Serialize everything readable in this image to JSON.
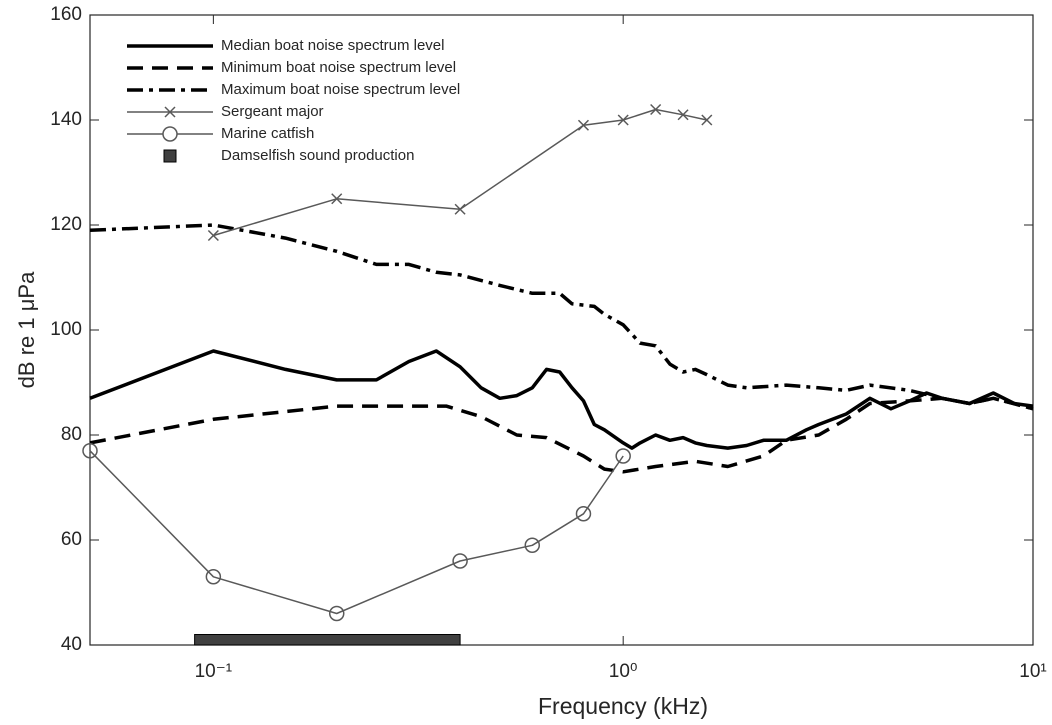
{
  "chart_data": {
    "type": "line",
    "xlabel": "Frequency (kHz)",
    "ylabel": "dB re 1 μPa",
    "xscale": "log",
    "xlim": [
      0.05,
      10
    ],
    "ylim": [
      40,
      160
    ],
    "xticks": [
      {
        "value": 0.1,
        "label": "10⁻¹"
      },
      {
        "value": 1,
        "label": "10⁰"
      },
      {
        "value": 10,
        "label": "10¹"
      }
    ],
    "yticks": [
      40,
      60,
      80,
      100,
      120,
      140,
      160
    ],
    "legend": "upper-left",
    "series": [
      {
        "name": "Median boat noise spectrum level",
        "color": "#000000",
        "style": "solid",
        "width": 3.5,
        "x": [
          0.05,
          0.1,
          0.15,
          0.2,
          0.25,
          0.3,
          0.35,
          0.4,
          0.45,
          0.5,
          0.55,
          0.6,
          0.65,
          0.7,
          0.75,
          0.8,
          0.85,
          0.9,
          1,
          1.05,
          1.1,
          1.2,
          1.3,
          1.4,
          1.5,
          1.6,
          1.8,
          2,
          2.2,
          2.5,
          2.8,
          3,
          3.5,
          4,
          4.5,
          5,
          5.5,
          6,
          7,
          8,
          9,
          10
        ],
        "values": [
          87,
          96,
          92.5,
          90.5,
          90.5,
          94,
          96,
          93,
          89,
          87,
          87.5,
          89,
          92.5,
          92,
          89,
          86.5,
          82,
          81,
          78.5,
          77.5,
          78.5,
          80,
          79,
          79.5,
          78.5,
          78,
          77.5,
          78,
          79,
          79,
          81,
          82,
          84,
          87,
          85,
          86.5,
          88,
          87,
          86,
          88,
          86,
          85.5
        ]
      },
      {
        "name": "Minimum boat noise spectrum level",
        "color": "#000000",
        "style": "dashed",
        "width": 3.5,
        "x": [
          0.05,
          0.1,
          0.2,
          0.3,
          0.37,
          0.45,
          0.55,
          0.65,
          0.8,
          0.9,
          1,
          1.2,
          1.5,
          1.8,
          2.2,
          2.5,
          3,
          3.5,
          4,
          5,
          6,
          7,
          8,
          9,
          10
        ],
        "values": [
          78.5,
          83,
          85.5,
          85.5,
          85.5,
          83.5,
          80,
          79.5,
          76,
          73.5,
          73,
          74,
          75,
          74,
          76,
          79,
          80,
          83,
          86,
          86.5,
          87,
          86,
          87,
          86,
          85
        ]
      },
      {
        "name": "Maximum boat noise spectrum level",
        "color": "#000000",
        "style": "dashdot",
        "width": 3.5,
        "x": [
          0.05,
          0.1,
          0.15,
          0.2,
          0.25,
          0.3,
          0.35,
          0.4,
          0.5,
          0.6,
          0.7,
          0.75,
          0.85,
          0.9,
          1,
          1.1,
          1.2,
          1.3,
          1.4,
          1.5,
          1.6,
          1.8,
          2,
          2.5,
          3,
          3.5,
          4,
          5,
          6,
          7,
          8,
          10
        ],
        "values": [
          119,
          120,
          117.5,
          115,
          112.5,
          112.5,
          111,
          110.5,
          108.5,
          107,
          107,
          105,
          104.5,
          103,
          101,
          97.5,
          97,
          93.5,
          92,
          92.5,
          91.5,
          89.5,
          89,
          89.5,
          89,
          88.5,
          89.5,
          88.5,
          87,
          86,
          87,
          85
        ]
      },
      {
        "name": "Sergeant major",
        "color": "#595959",
        "style": "solid",
        "width": 1.5,
        "marker": "x",
        "x": [
          0.1,
          0.2,
          0.4,
          0.8,
          1,
          1.2,
          1.4,
          1.6
        ],
        "values": [
          118,
          125,
          123,
          139,
          140,
          142,
          141,
          140
        ]
      },
      {
        "name": "Marine catfish",
        "color": "#595959",
        "style": "solid",
        "width": 1.5,
        "marker": "o",
        "x": [
          0.05,
          0.1,
          0.2,
          0.4,
          0.6,
          0.8,
          1
        ],
        "values": [
          77,
          53,
          46,
          56,
          59,
          65,
          76
        ]
      },
      {
        "name": "Damselfish sound production",
        "color": "#404040",
        "kind": "band",
        "x": [
          0.09,
          0.4
        ],
        "values": [
          42,
          42
        ]
      }
    ]
  }
}
